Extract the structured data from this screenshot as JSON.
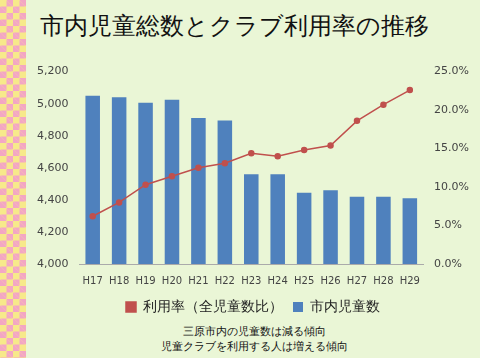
{
  "chart_data": {
    "type": "bar",
    "title": "市内児童総数とクラブ利用率の推移",
    "categories": [
      "H17",
      "H18",
      "H19",
      "H20",
      "H21",
      "H22",
      "H23",
      "H24",
      "H25",
      "H26",
      "H27",
      "H28",
      "H29"
    ],
    "series": [
      {
        "name": "市内児童数",
        "type": "bar",
        "color": "#4f81bd",
        "values": [
          5050,
          5040,
          5005,
          5025,
          4910,
          4895,
          4560,
          4560,
          4445,
          4460,
          4420,
          4420,
          4410
        ]
      },
      {
        "name": "利用率（全児童数比）",
        "type": "line",
        "color": "#c0504d",
        "axis": "y2",
        "marker": "circle",
        "values": [
          6.2,
          8.0,
          10.3,
          11.4,
          12.5,
          13.1,
          14.4,
          14.0,
          14.8,
          15.4,
          18.6,
          20.7,
          22.6
        ]
      }
    ],
    "ylim": [
      4000,
      5200
    ],
    "yticks": [
      {
        "value": 4000,
        "label": "4,000"
      },
      {
        "value": 4200,
        "label": "4,200"
      },
      {
        "value": 4400,
        "label": "4,400"
      },
      {
        "value": 4600,
        "label": "4,600"
      },
      {
        "value": 4800,
        "label": "4,800"
      },
      {
        "value": 5000,
        "label": "5,000"
      },
      {
        "value": 5200,
        "label": "5,200"
      }
    ],
    "y2lim": [
      0,
      25
    ],
    "y2ticks": [
      {
        "value": 0,
        "label": "0.0%"
      },
      {
        "value": 5,
        "label": "5.0%"
      },
      {
        "value": 10,
        "label": "10.0%"
      },
      {
        "value": 15,
        "label": "15.0%"
      },
      {
        "value": 20,
        "label": "20.0%"
      },
      {
        "value": 25,
        "label": "25.0%"
      }
    ],
    "grid": false,
    "legend": "bottom",
    "annotations": [
      "三原市内の児童数は減る傾向",
      "児童クラブを利用する人は増える傾向"
    ]
  }
}
